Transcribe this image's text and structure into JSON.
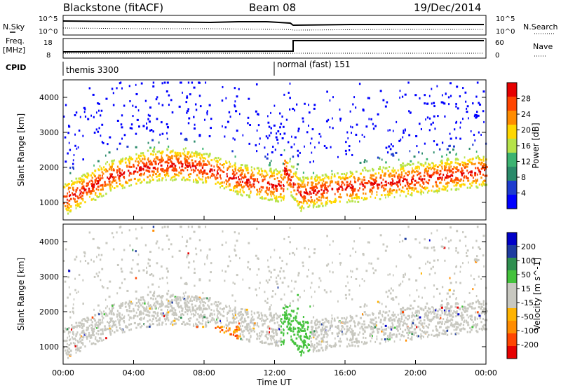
{
  "header": {
    "station": "Blackstone (fitACF)",
    "beam": "Beam 08",
    "date": "19/Dec/2014"
  },
  "side_labels": {
    "nsky": "N.Sky",
    "freq_line1": "Freq.",
    "freq_line2": "[MHz]",
    "cpid": "CPID",
    "nsearch": "N.Search",
    "nave": "Nave"
  },
  "panel_ticks": {
    "nsky_left": [
      "10^5",
      "10^0"
    ],
    "nsky_right": [
      "10^5",
      "10^0"
    ],
    "freq_left": [
      "18",
      "8"
    ],
    "nave_right": [
      "60",
      "0"
    ]
  },
  "cpid_segments": [
    {
      "label": "themis 3300",
      "start_hour": 0,
      "end_hour": 12
    },
    {
      "label": "normal (fast) 151",
      "start_hour": 12,
      "end_hour": 24
    }
  ],
  "colors": {
    "power": [
      "#0000ff",
      "#1e3ccf",
      "#2a8a6a",
      "#3cb371",
      "#b6e34a",
      "#ffd700",
      "#ff8c00",
      "#ff4500",
      "#e60000"
    ],
    "velocity": [
      "#e60000",
      "#ff4500",
      "#ff8c00",
      "#ffb300",
      "#c8c8c0",
      "#c8c8c0",
      "#44c23c",
      "#2f8f50",
      "#1e3ca0",
      "#0000c8"
    ]
  },
  "chart_data": [
    {
      "type": "heatmap",
      "name": "power",
      "xlabel": "Time UT",
      "ylabel": "Slant Range [km]",
      "xlim": [
        0,
        24
      ],
      "ylim": [
        500,
        4500
      ],
      "x_ticks": [
        "00:00",
        "04:00",
        "08:00",
        "12:00",
        "16:00",
        "20:00",
        "00:00"
      ],
      "y_ticks": [
        1000,
        2000,
        3000,
        4000
      ],
      "colorbar_label": "Power [dB]",
      "colorbar_ticks": [
        4,
        8,
        12,
        16,
        20,
        24,
        28
      ]
    },
    {
      "type": "heatmap",
      "name": "velocity",
      "xlabel": "Time UT",
      "ylabel": "Slant Range [km]",
      "xlim": [
        0,
        24
      ],
      "ylim": [
        500,
        4500
      ],
      "x_ticks": [
        "00:00",
        "04:00",
        "08:00",
        "12:00",
        "16:00",
        "20:00",
        "00:00"
      ],
      "y_ticks": [
        1000,
        2000,
        3000,
        4000
      ],
      "colorbar_label": "Velocity [m s^-1]",
      "colorbar_ticks": [
        200,
        100,
        50,
        15,
        -15,
        -50,
        -100,
        -200
      ]
    }
  ]
}
